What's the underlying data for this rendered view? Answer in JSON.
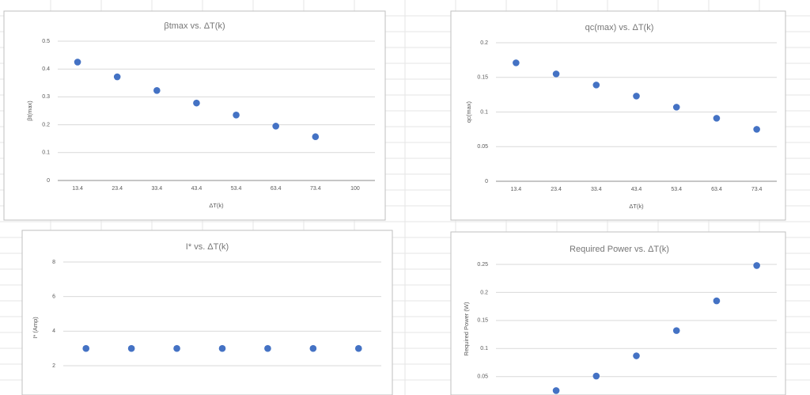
{
  "chart_data": [
    {
      "type": "scatter",
      "title": "βtmax vs. ΔT(k)",
      "x_label": "ΔT(k)",
      "y_label": "βt(max)",
      "categories": [
        "13.4",
        "23.4",
        "33.4",
        "43.4",
        "53.4",
        "63.4",
        "73.4",
        "100"
      ],
      "values": [
        0.425,
        0.372,
        0.323,
        0.278,
        0.235,
        0.195,
        0.157,
        null
      ],
      "color": "#4472c4",
      "ylim": [
        0,
        0.5
      ],
      "yticks": [
        0,
        0.1,
        0.2,
        0.3,
        0.4,
        0.5
      ],
      "grid": true
    },
    {
      "type": "scatter",
      "title": "qc(max) vs. ΔT(k)",
      "x_label": "ΔT(k)",
      "y_label": "qc(max)",
      "categories": [
        "13.4",
        "23.4",
        "33.4",
        "43.4",
        "53.4",
        "63.4",
        "73.4"
      ],
      "values": [
        0.171,
        0.155,
        0.139,
        0.123,
        0.107,
        0.091,
        0.075
      ],
      "color": "#4472c4",
      "ylim": [
        0,
        0.2
      ],
      "yticks": [
        0,
        0.05,
        0.1,
        0.15,
        0.2
      ],
      "grid": true
    },
    {
      "type": "scatter",
      "title": "I* vs. ΔT(k)",
      "y_label": "I* (Amp)",
      "values": [
        3,
        3,
        3,
        3,
        3,
        3,
        3
      ],
      "color": "#4472c4",
      "ylim": [
        0.4,
        8
      ],
      "yticks": [
        2,
        4,
        6,
        8
      ],
      "grid": true
    },
    {
      "type": "scatter",
      "title": "Required Power vs. ΔT(k)",
      "y_label": "Required Power (W)",
      "values": [
        null,
        0.025,
        0.051,
        0.087,
        0.132,
        0.185,
        0.248
      ],
      "color": "#4472c4",
      "ylim": [
        0.02,
        0.25
      ],
      "yticks": [
        0.05,
        0.1,
        0.15,
        0.2,
        0.25
      ],
      "grid": true
    }
  ]
}
